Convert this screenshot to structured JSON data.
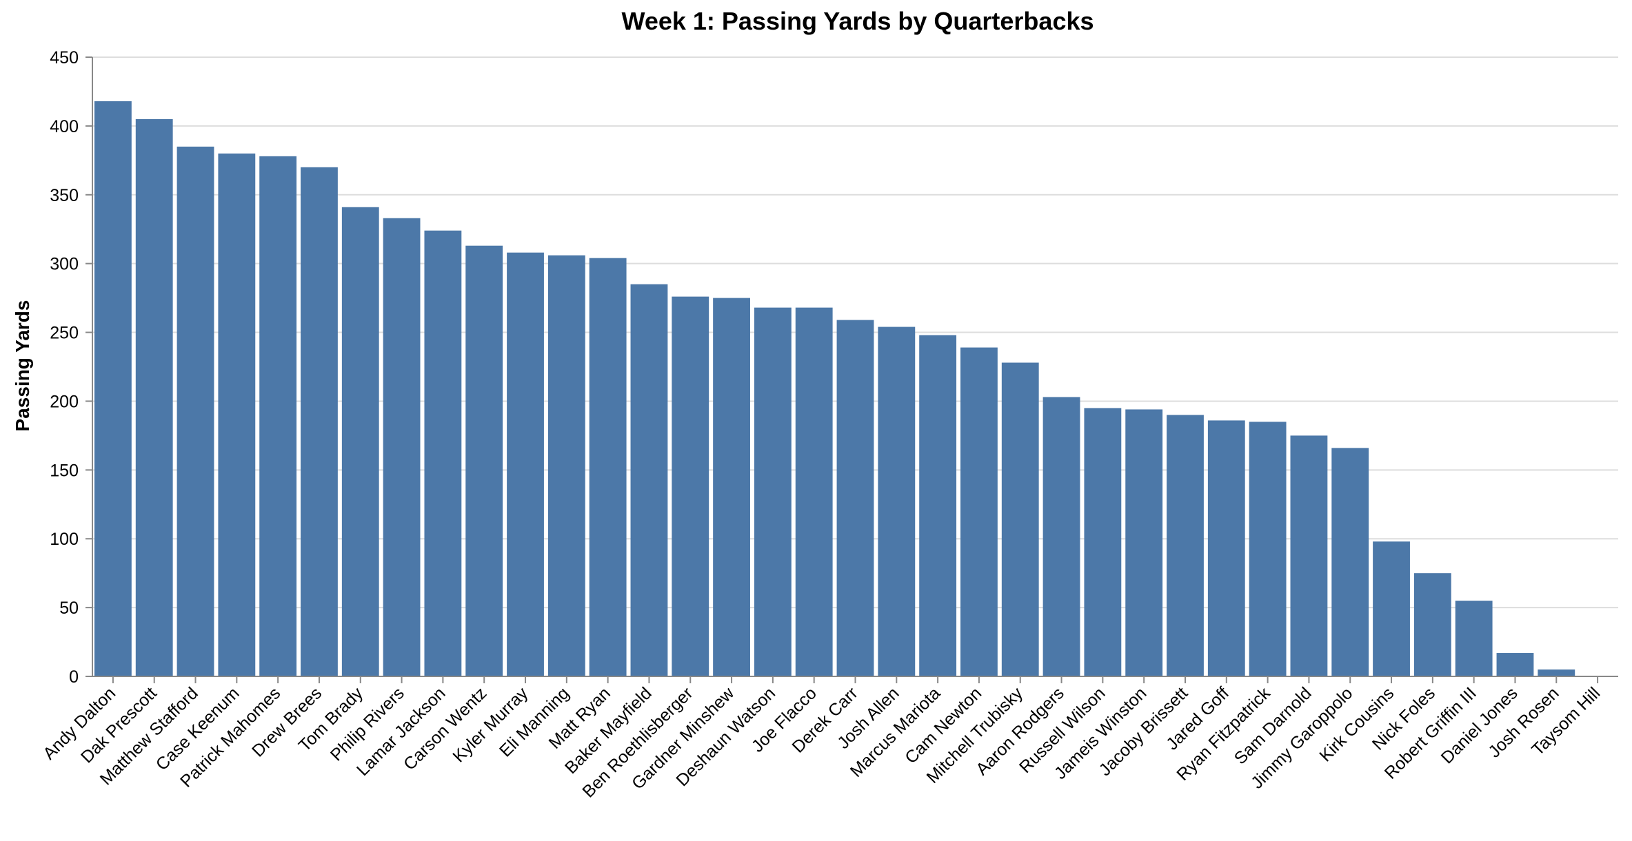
{
  "chart_data": {
    "type": "bar",
    "title": "Week 1: Passing Yards by Quarterbacks",
    "xlabel": "",
    "ylabel": "Passing Yards",
    "ylim": [
      0,
      450
    ],
    "yticks": [
      0,
      50,
      100,
      150,
      200,
      250,
      300,
      350,
      400,
      450
    ],
    "grid": true,
    "bar_color": "#4c78a8",
    "categories": [
      "Andy Dalton",
      "Dak Prescott",
      "Matthew Stafford",
      "Case Keenum",
      "Patrick Mahomes",
      "Drew Brees",
      "Tom Brady",
      "Philip Rivers",
      "Lamar Jackson",
      "Carson Wentz",
      "Kyler Murray",
      "Eli Manning",
      "Matt Ryan",
      "Baker Mayfield",
      "Ben Roethlisberger",
      "Gardner Minshew",
      "Deshaun Watson",
      "Joe Flacco",
      "Derek Carr",
      "Josh Allen",
      "Marcus Mariota",
      "Cam Newton",
      "Mitchell Trubisky",
      "Aaron Rodgers",
      "Russell Wilson",
      "Jameis Winston",
      "Jacoby Brissett",
      "Jared Goff",
      "Ryan Fitzpatrick",
      "Sam Darnold",
      "Jimmy Garoppolo",
      "Kirk Cousins",
      "Nick Foles",
      "Robert Griffin III",
      "Daniel Jones",
      "Josh Rosen",
      "Taysom Hill"
    ],
    "values": [
      418,
      405,
      385,
      380,
      378,
      370,
      341,
      333,
      324,
      313,
      308,
      306,
      304,
      285,
      276,
      275,
      268,
      268,
      259,
      254,
      248,
      239,
      228,
      203,
      195,
      194,
      190,
      186,
      185,
      175,
      166,
      98,
      75,
      55,
      17,
      5,
      0
    ]
  }
}
